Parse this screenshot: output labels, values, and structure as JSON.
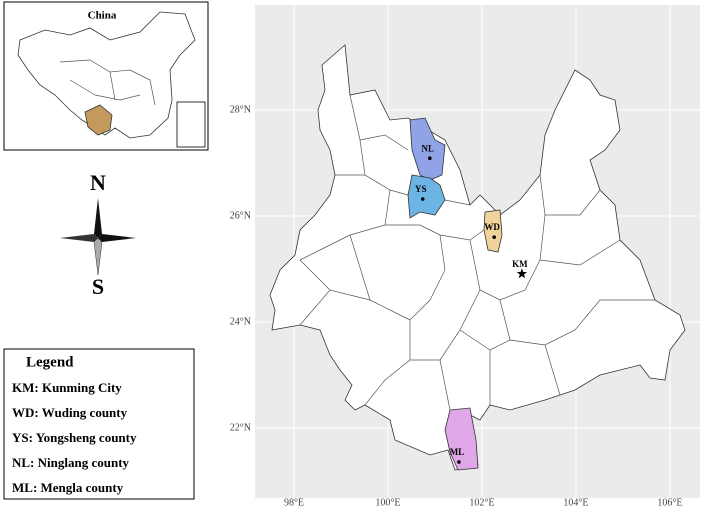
{
  "map": {
    "inset_title": "China",
    "compass": {
      "north": "N",
      "south": "S"
    },
    "xlim": [
      97.17,
      106.64
    ],
    "ylim": [
      20.68,
      29.98
    ],
    "xticks": [
      {
        "value": 98,
        "label": "98°E"
      },
      {
        "value": 100,
        "label": "100°E"
      },
      {
        "value": 102,
        "label": "102°E"
      },
      {
        "value": 104,
        "label": "104°E"
      },
      {
        "value": 106,
        "label": "106°E"
      }
    ],
    "yticks": [
      {
        "value": 22,
        "label": "22°N"
      },
      {
        "value": 24,
        "label": "24°N"
      },
      {
        "value": 26,
        "label": "26°N"
      },
      {
        "value": 28,
        "label": "28°N"
      }
    ],
    "places": [
      {
        "label": "NL",
        "lon": 100.89,
        "lat": 27.09,
        "color": "#8fa3e6",
        "marker": "dot"
      },
      {
        "label": "YS",
        "lon": 100.74,
        "lat": 26.32,
        "color": "#6cb4e4",
        "marker": "dot"
      },
      {
        "label": "WD",
        "lon": 102.26,
        "lat": 25.6,
        "color": "#f0d39a",
        "marker": "dot"
      },
      {
        "label": "KM",
        "lon": 102.85,
        "lat": 24.91,
        "color": null,
        "marker": "star"
      },
      {
        "label": "ML",
        "lon": 101.51,
        "lat": 21.36,
        "color": "#e0a8e8",
        "marker": "dot"
      }
    ],
    "legend": {
      "title": "Legend",
      "items": [
        "KM: Kunming City",
        "WD: Wuding county",
        "YS: Yongsheng county",
        "NL: Ninglang county",
        "ML: Mengla county"
      ]
    }
  }
}
